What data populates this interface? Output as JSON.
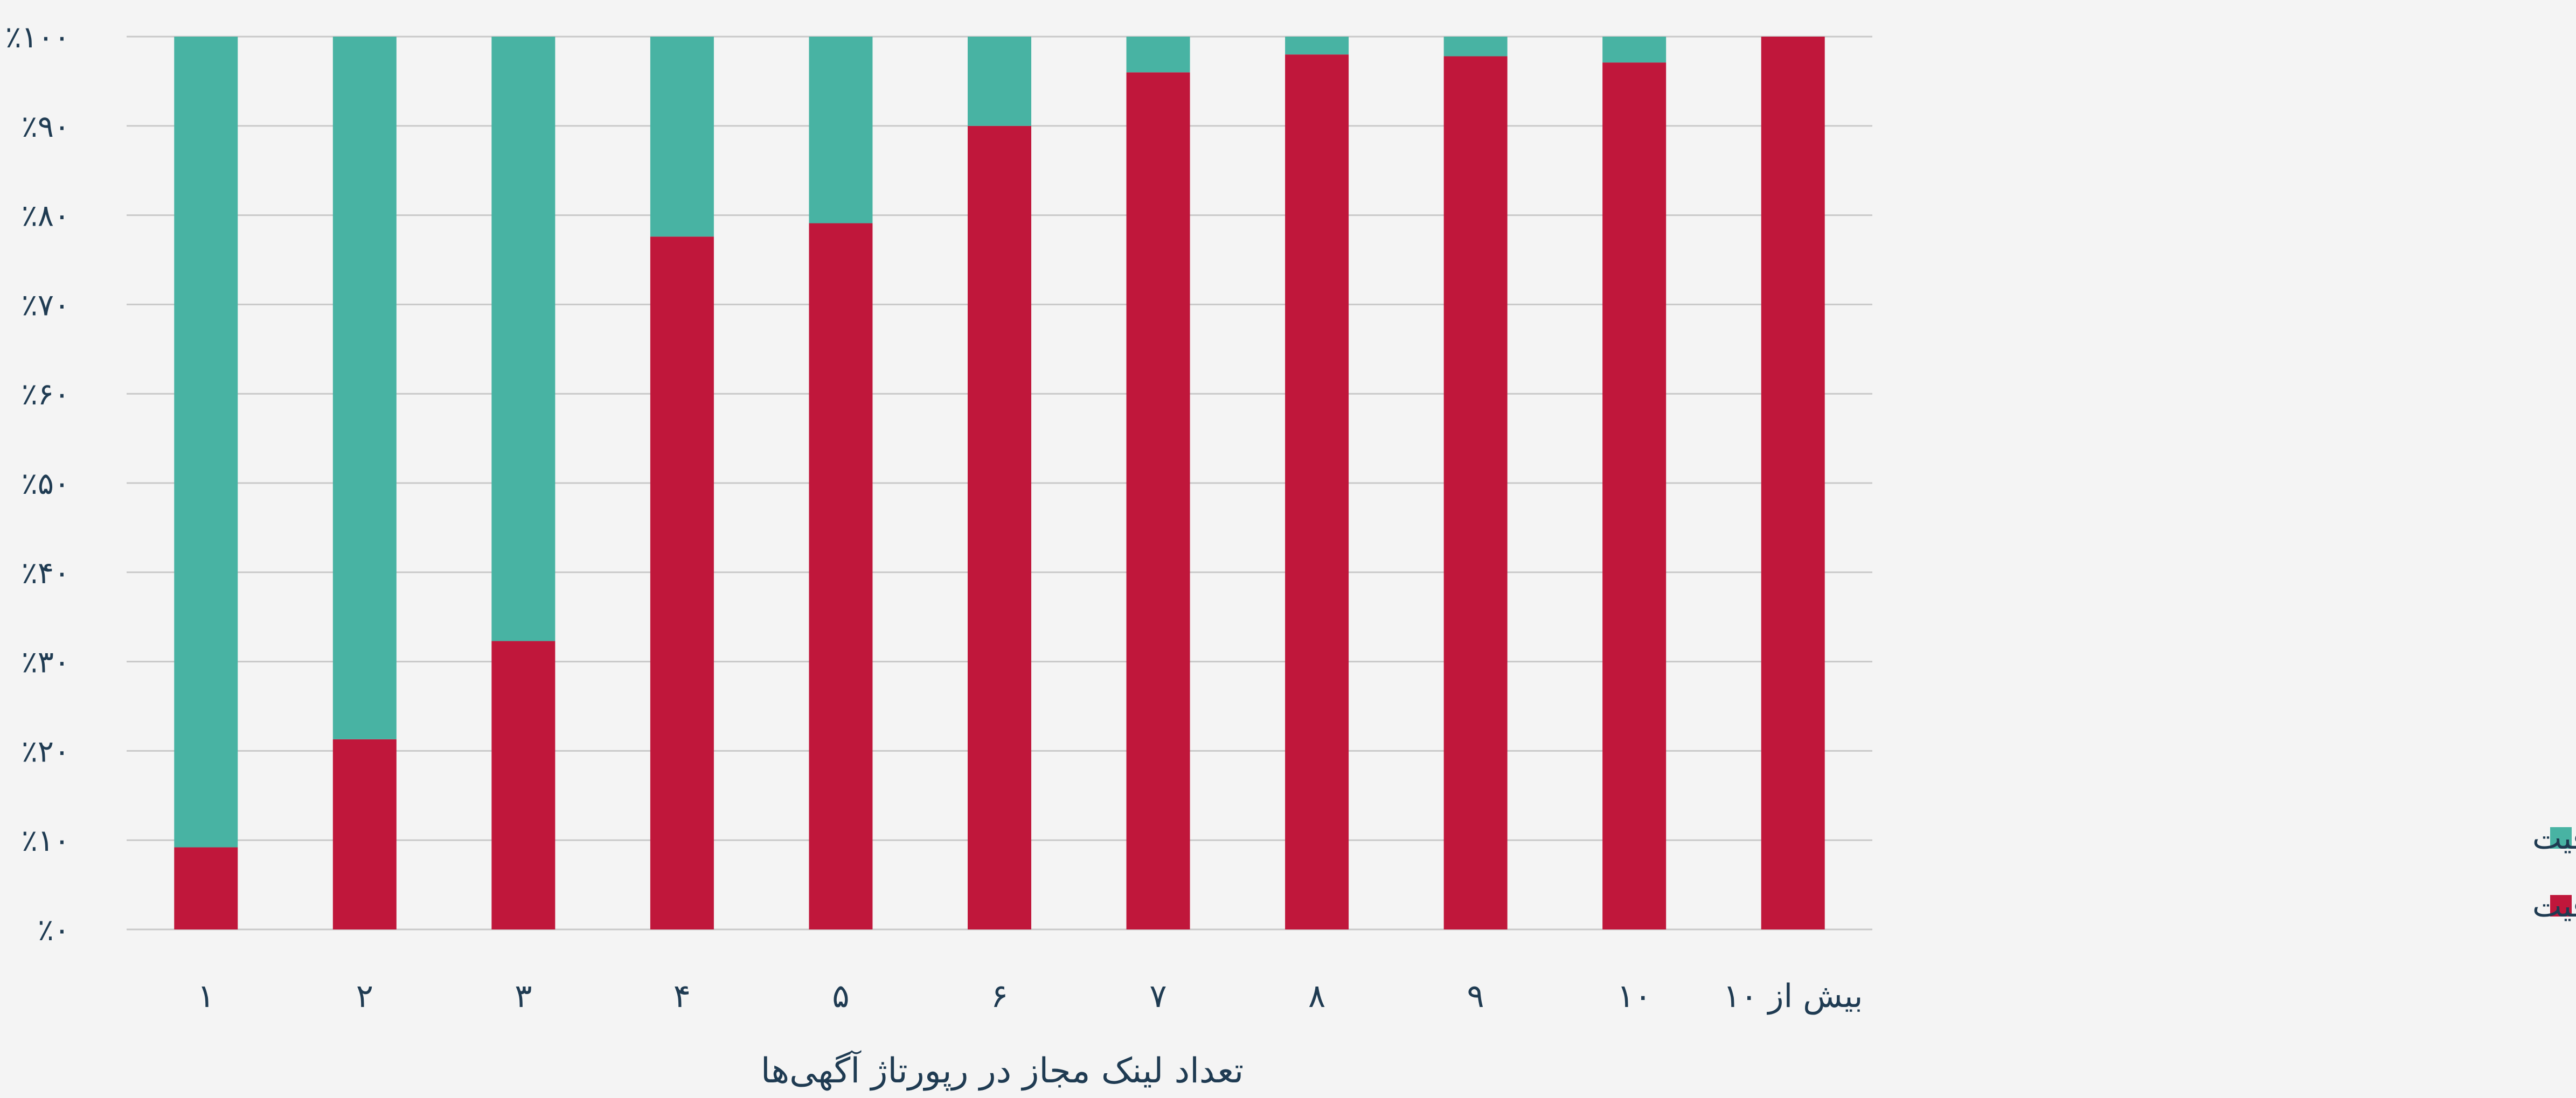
{
  "chart_data": {
    "type": "bar",
    "stacked": true,
    "title": "",
    "xlabel": "تعداد لینک مجاز در رپورتاژ آگهی‌ها",
    "ylabel": "",
    "ylim": [
      0,
      100
    ],
    "yticks": [
      "٪۰",
      "٪۱۰",
      "٪۲۰",
      "٪۳۰",
      "٪۴۰",
      "٪۵۰",
      "٪۶۰",
      "٪۷۰",
      "٪۸۰",
      "٪۹۰",
      "٪۱۰۰"
    ],
    "categories": [
      "۱",
      "۲",
      "۳",
      "۴",
      "۵",
      "۶",
      "۷",
      "۸",
      "۹",
      "۱۰",
      "بیش از ۱۰"
    ],
    "series": [
      {
        "name": "عدم استفاده از تمام ظرفیت",
        "color": "#c0173b",
        "values": [
          9.2,
          21.3,
          32.3,
          77.6,
          79.1,
          90,
          96,
          98,
          97.8,
          97.1,
          100
        ]
      },
      {
        "name": "استفاده از تمام ظرفیت",
        "color": "#48b3a3",
        "values": [
          90.8,
          78.7,
          67.7,
          22.4,
          20.9,
          10,
          4,
          2,
          2.2,
          2.9,
          0
        ]
      }
    ],
    "grid": true,
    "legend_position": "right"
  }
}
